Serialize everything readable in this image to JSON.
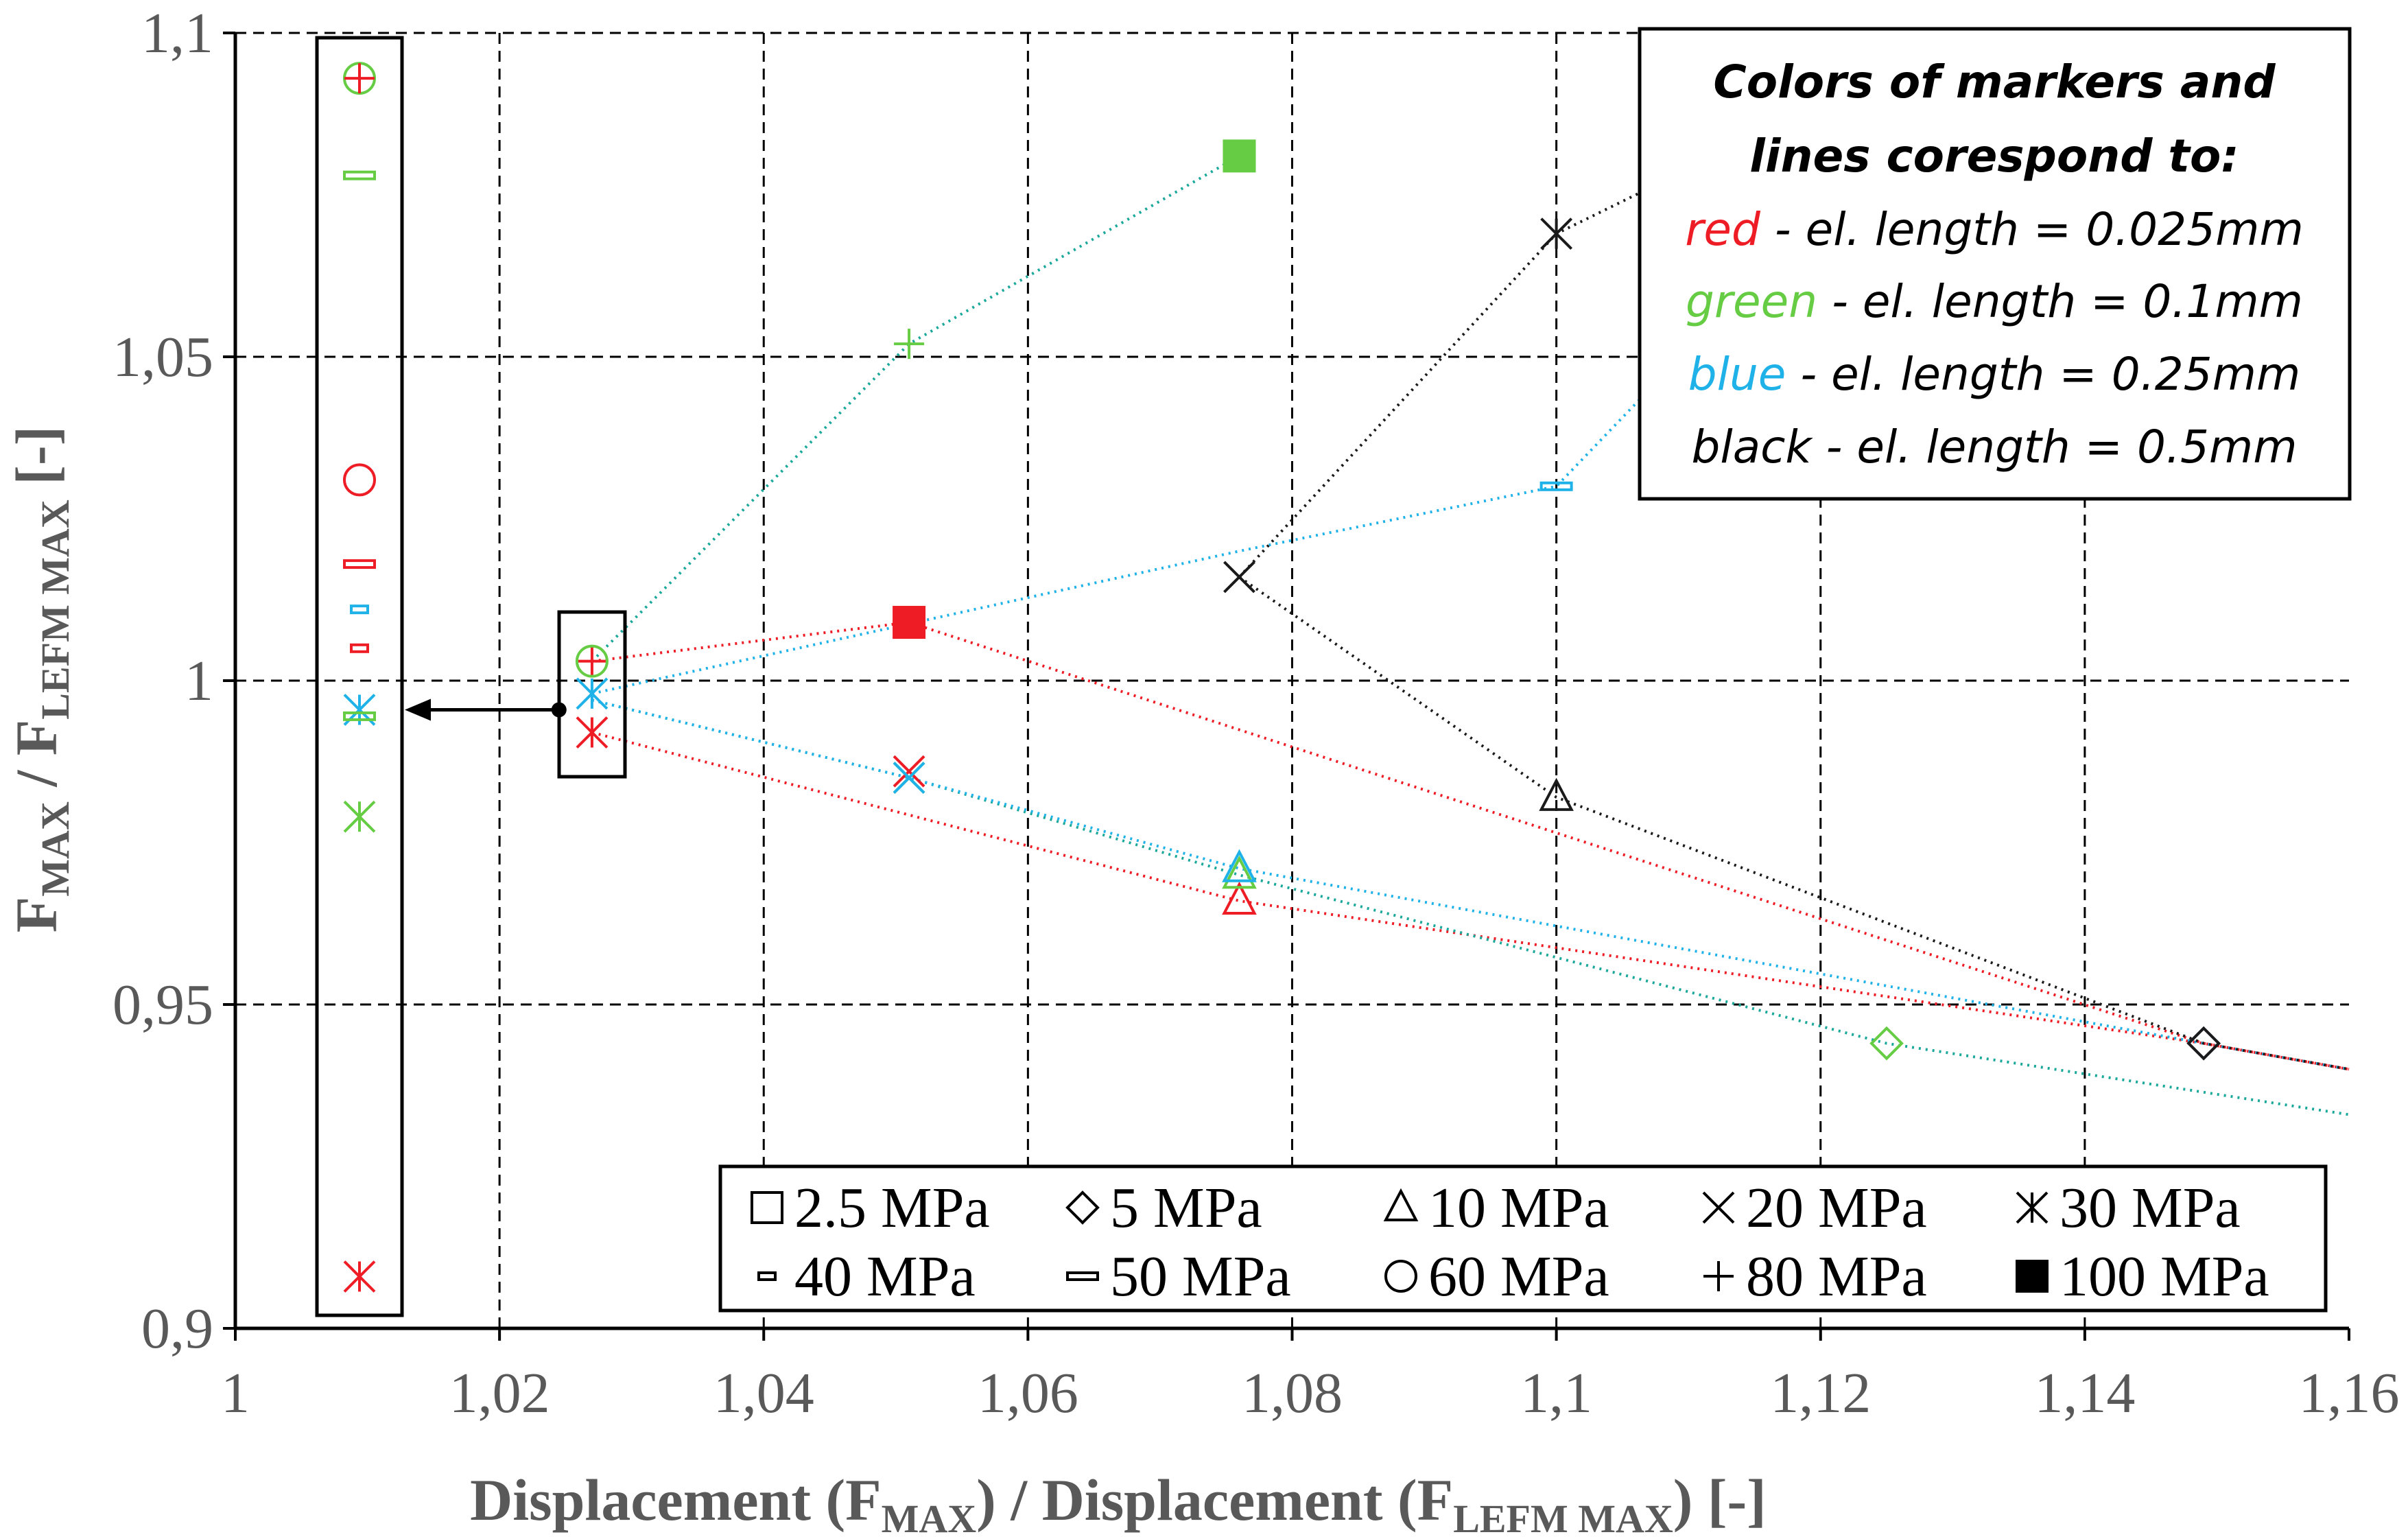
{
  "chart_data": {
    "type": "scatter",
    "xlabel": {
      "main": "Displacement (F",
      "sub1": "MAX",
      "mid": ") / Displacement (F",
      "sub2": "LEFM MAX",
      "end": ") [-]"
    },
    "ylabel": {
      "main": "F",
      "sub1": "MAX",
      "mid": " / F",
      "sub2": "LEFM MAX",
      "end": " [-]"
    },
    "xlim": [
      1,
      1.16
    ],
    "ylim": [
      0.9,
      1.1
    ],
    "x_ticks": [
      1,
      1.02,
      1.04,
      1.06,
      1.08,
      1.1,
      1.12,
      1.14,
      1.16
    ],
    "x_tick_labels": [
      "1",
      "1,02",
      "1,04",
      "1,06",
      "1,08",
      "1,1",
      "1,12",
      "1,14",
      "1,16"
    ],
    "y_ticks": [
      0.9,
      0.95,
      1,
      1.05,
      1.1
    ],
    "y_tick_labels": [
      "0,9",
      "0,95",
      "1",
      "1,05",
      "1,1"
    ],
    "grid": true,
    "colors": {
      "red": "#ee1c25",
      "green": "#66cc44",
      "blue": "#1fb2e8",
      "black": "#1a1a1a",
      "teal": "#1aa89a"
    },
    "series": [
      {
        "name": "el. length = 0.025mm",
        "color": "red",
        "line": [
          [
            1.027,
            1.003
          ],
          [
            1.051,
            1.009
          ],
          [
            1.149,
            0.944
          ],
          [
            1.16,
            0.94
          ]
        ],
        "line2": [
          [
            1.027,
            0.992
          ],
          [
            1.076,
            0.966
          ],
          [
            1.149,
            0.944
          ],
          [
            1.16,
            0.94
          ]
        ],
        "points": [
          {
            "x": 1.027,
            "y": 1.003,
            "marker": "plus"
          },
          {
            "x": 1.027,
            "y": 0.992,
            "marker": "asterisk"
          },
          {
            "x": 1.051,
            "y": 1.009,
            "marker": "filled-square"
          },
          {
            "x": 1.051,
            "y": 0.986,
            "marker": "x"
          },
          {
            "x": 1.076,
            "y": 0.966,
            "marker": "triangle"
          },
          {
            "x": 1.149,
            "y": 0.944,
            "marker": "diamond"
          }
        ]
      },
      {
        "name": "el. length = 0.1mm",
        "color": "green",
        "line": [
          [
            1.027,
            1.003
          ],
          [
            1.051,
            1.052
          ],
          [
            1.076,
            1.081
          ]
        ],
        "line2": [
          [
            1.027,
            0.997
          ],
          [
            1.051,
            0.985
          ],
          [
            1.076,
            0.97
          ],
          [
            1.125,
            0.944
          ],
          [
            1.16,
            0.933
          ]
        ],
        "points": [
          {
            "x": 1.027,
            "y": 1.003,
            "marker": "circle"
          },
          {
            "x": 1.051,
            "y": 1.052,
            "marker": "plus"
          },
          {
            "x": 1.076,
            "y": 1.081,
            "marker": "filled-square"
          },
          {
            "x": 1.051,
            "y": 0.985,
            "marker": "x"
          },
          {
            "x": 1.076,
            "y": 0.97,
            "marker": "triangle"
          },
          {
            "x": 1.125,
            "y": 0.944,
            "marker": "diamond"
          }
        ]
      },
      {
        "name": "el. length = 0.25mm",
        "color": "blue",
        "line": [
          [
            1.027,
            0.998
          ],
          [
            1.076,
            1.02
          ],
          [
            1.1,
            1.03
          ],
          [
            1.108,
            1.047
          ]
        ],
        "line2": [
          [
            1.027,
            0.997
          ],
          [
            1.051,
            0.985
          ],
          [
            1.076,
            0.971
          ],
          [
            1.149,
            0.944
          ],
          [
            1.16,
            0.94
          ]
        ],
        "points": [
          {
            "x": 1.027,
            "y": 0.998,
            "marker": "asterisk"
          },
          {
            "x": 1.1,
            "y": 1.03,
            "marker": "dash"
          },
          {
            "x": 1.051,
            "y": 0.985,
            "marker": "x"
          },
          {
            "x": 1.076,
            "y": 0.971,
            "marker": "triangle"
          },
          {
            "x": 1.149,
            "y": 0.944,
            "marker": "diamond"
          }
        ]
      },
      {
        "name": "el. length = 0.5mm",
        "color": "black",
        "line": [
          [
            1.076,
            1.016
          ],
          [
            1.1,
            1.069
          ],
          [
            1.108,
            1.077
          ]
        ],
        "line2": [
          [
            1.076,
            1.016
          ],
          [
            1.1,
            0.982
          ],
          [
            1.149,
            0.944
          ],
          [
            1.16,
            0.94
          ]
        ],
        "points": [
          {
            "x": 1.076,
            "y": 1.016,
            "marker": "x"
          },
          {
            "x": 1.1,
            "y": 1.069,
            "marker": "asterisk"
          },
          {
            "x": 1.1,
            "y": 0.982,
            "marker": "triangle"
          },
          {
            "x": 1.149,
            "y": 0.944,
            "marker": "diamond"
          }
        ]
      }
    ],
    "zoom_panel": {
      "target": {
        "x": 1.0245,
        "y": 0.9955
      },
      "points": [
        {
          "y": 1.093,
          "marker": "circle",
          "color": "green"
        },
        {
          "y": 1.093,
          "marker": "plus",
          "color": "red"
        },
        {
          "y": 1.078,
          "marker": "dash",
          "color": "green"
        },
        {
          "y": 1.031,
          "marker": "circle",
          "color": "red"
        },
        {
          "y": 1.018,
          "marker": "dash",
          "color": "red"
        },
        {
          "y": 1.011,
          "marker": "small-dash",
          "color": "blue"
        },
        {
          "y": 1.005,
          "marker": "small-dash",
          "color": "red"
        },
        {
          "y": 0.9955,
          "marker": "asterisk",
          "color": "blue"
        },
        {
          "y": 0.9945,
          "marker": "dash",
          "color": "green"
        },
        {
          "y": 0.979,
          "marker": "asterisk",
          "color": "green"
        },
        {
          "y": 0.908,
          "marker": "asterisk",
          "color": "red"
        }
      ]
    },
    "info_box": {
      "title_line1": "Colors of markers and",
      "title_line2": "lines corespond to:",
      "rows": [
        {
          "color_word": "red",
          "rest": " - el. length = 0.025mm",
          "color": "red"
        },
        {
          "color_word": "green",
          "rest": " - el. length = 0.1mm",
          "color": "green"
        },
        {
          "color_word": "blue",
          "rest": " - el. length = 0.25mm",
          "color": "blue"
        },
        {
          "color_word": "black",
          "rest": " - el. length = 0.5mm",
          "color": "black"
        }
      ]
    },
    "legend": [
      {
        "symbol": "square",
        "label": "2.5 MPa"
      },
      {
        "symbol": "diamond",
        "label": "5 MPa"
      },
      {
        "symbol": "triangle",
        "label": "10 MPa"
      },
      {
        "symbol": "x",
        "label": "20 MPa"
      },
      {
        "symbol": "asterisk",
        "label": "30 MPa"
      },
      {
        "symbol": "small-dash",
        "label": "40 MPa"
      },
      {
        "symbol": "dash",
        "label": "50 MPa"
      },
      {
        "symbol": "circle",
        "label": "60 MPa"
      },
      {
        "symbol": "plus",
        "label": "80 MPa"
      },
      {
        "symbol": "filled-square",
        "label": "100 MPa"
      }
    ]
  }
}
